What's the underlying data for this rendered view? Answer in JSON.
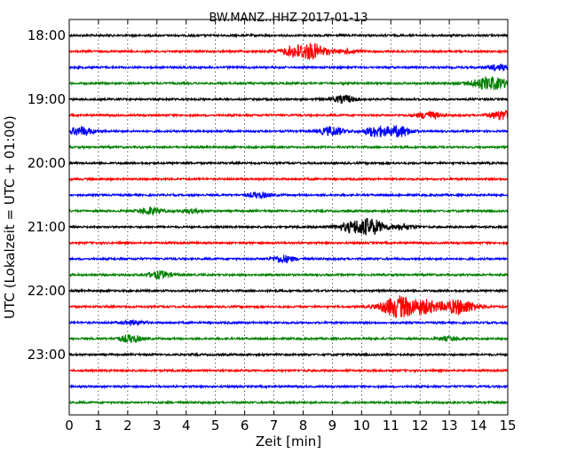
{
  "chart_data": {
    "type": "line",
    "title": "BW.MANZ..HHZ 2017-01-13",
    "xlabel": "Zeit  [min]",
    "ylabel": "UTC (Lokalzeit = UTC + 01:00)",
    "xlim": [
      0,
      15
    ],
    "x_ticks": [
      "0",
      "1",
      "2",
      "3",
      "4",
      "5",
      "6",
      "7",
      "8",
      "9",
      "10",
      "11",
      "12",
      "13",
      "14",
      "15"
    ],
    "y_tick_labels": [
      "18:00",
      "19:00",
      "20:00",
      "21:00",
      "22:00",
      "23:00"
    ],
    "trace_interval_minutes": 15,
    "grid": "vertical dotted",
    "colors": [
      "#000000",
      "#ff0000",
      "#0000ff",
      "#008000"
    ],
    "traces": [
      {
        "start": "18:00",
        "color": "#000000",
        "events": []
      },
      {
        "start": "18:15",
        "color": "#ff0000",
        "events": [
          {
            "minute": 8.0,
            "amp": 8
          },
          {
            "minute": 8.5,
            "amp": 3
          },
          {
            "minute": 9.6,
            "amp": 2
          }
        ]
      },
      {
        "start": "18:30",
        "color": "#0000ff",
        "events": [
          {
            "minute": 14.7,
            "amp": 3
          }
        ]
      },
      {
        "start": "18:45",
        "color": "#008000",
        "events": [
          {
            "minute": 14.4,
            "amp": 7
          }
        ]
      },
      {
        "start": "19:00",
        "color": "#000000",
        "events": [
          {
            "minute": 9.4,
            "amp": 4
          }
        ]
      },
      {
        "start": "19:15",
        "color": "#ff0000",
        "events": [
          {
            "minute": 12.3,
            "amp": 4
          },
          {
            "minute": 14.8,
            "amp": 5
          }
        ]
      },
      {
        "start": "19:30",
        "color": "#0000ff",
        "events": [
          {
            "minute": 0.4,
            "amp": 5
          },
          {
            "minute": 9.0,
            "amp": 5
          },
          {
            "minute": 10.5,
            "amp": 6
          },
          {
            "minute": 11.3,
            "amp": 6
          }
        ]
      },
      {
        "start": "19:45",
        "color": "#008000",
        "events": []
      },
      {
        "start": "20:00",
        "color": "#000000",
        "events": []
      },
      {
        "start": "20:15",
        "color": "#ff0000",
        "events": []
      },
      {
        "start": "20:30",
        "color": "#0000ff",
        "events": [
          {
            "minute": 6.5,
            "amp": 3
          }
        ]
      },
      {
        "start": "20:45",
        "color": "#008000",
        "events": [
          {
            "minute": 2.8,
            "amp": 4
          },
          {
            "minute": 4.2,
            "amp": 2
          }
        ]
      },
      {
        "start": "21:00",
        "color": "#000000",
        "events": [
          {
            "minute": 9.9,
            "amp": 7
          },
          {
            "minute": 10.4,
            "amp": 5
          },
          {
            "minute": 11.4,
            "amp": 3
          }
        ]
      },
      {
        "start": "21:15",
        "color": "#ff0000",
        "events": []
      },
      {
        "start": "21:30",
        "color": "#0000ff",
        "events": [
          {
            "minute": 7.3,
            "amp": 4
          }
        ]
      },
      {
        "start": "21:45",
        "color": "#008000",
        "events": [
          {
            "minute": 3.1,
            "amp": 4
          }
        ]
      },
      {
        "start": "22:00",
        "color": "#000000",
        "events": []
      },
      {
        "start": "22:15",
        "color": "#ff0000",
        "events": [
          {
            "minute": 11.3,
            "amp": 12
          },
          {
            "minute": 12.2,
            "amp": 6
          },
          {
            "minute": 13.3,
            "amp": 8
          }
        ]
      },
      {
        "start": "22:30",
        "color": "#0000ff",
        "events": [
          {
            "minute": 2.2,
            "amp": 2
          }
        ]
      },
      {
        "start": "22:45",
        "color": "#008000",
        "events": [
          {
            "minute": 2.1,
            "amp": 4
          },
          {
            "minute": 13.0,
            "amp": 2
          }
        ]
      },
      {
        "start": "23:00",
        "color": "#000000",
        "events": []
      },
      {
        "start": "23:15",
        "color": "#ff0000",
        "events": []
      },
      {
        "start": "23:30",
        "color": "#0000ff",
        "events": []
      },
      {
        "start": "23:45",
        "color": "#008000",
        "events": []
      }
    ]
  }
}
